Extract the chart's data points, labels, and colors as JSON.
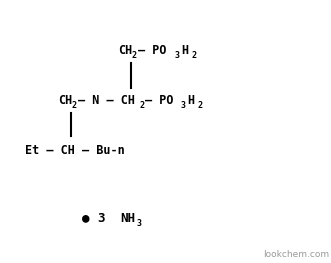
{
  "background_color": "#ffffff",
  "watermark_text": "lookchem.com",
  "watermark_color": "#999999",
  "watermark_fontsize": 6.5,
  "top_row": {
    "ch2": "CH",
    "ch2_sub": "2",
    "bond1": "—",
    "po3h2": "PO",
    "po3h2_sub3": "3",
    "po3h2_h": "H",
    "po3h2_sub2": "2"
  },
  "mid_row": {
    "left_ch2": "CH",
    "left_sub": "2",
    "bond_l": "—",
    "n": "N",
    "bond_r": "—",
    "right_ch2": "CH",
    "right_sub": "2",
    "bond2": "—",
    "po3h2": "PO",
    "po3_sub": "3",
    "h": "H",
    "h_sub": "2"
  },
  "bot_row": {
    "text": "Et — CH — Bu-n"
  },
  "nh3_row": {
    "bullet": "●",
    "num": "3",
    "nh": "NH",
    "sub": "3"
  }
}
